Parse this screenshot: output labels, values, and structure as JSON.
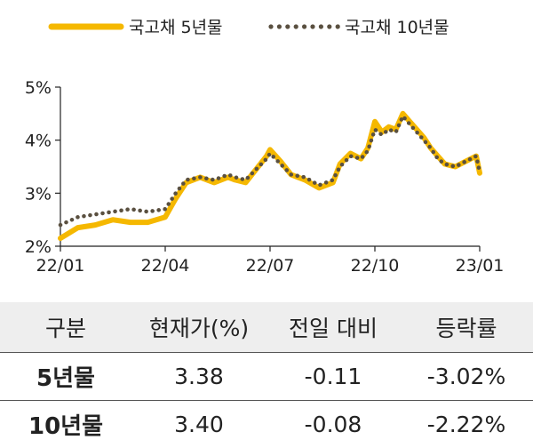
{
  "chart_data": {
    "type": "line",
    "title": "",
    "xlabel": "",
    "ylabel": "",
    "ylim": [
      2,
      5
    ],
    "yticks": [
      "2%",
      "3%",
      "4%",
      "5%"
    ],
    "xticks": [
      "22/01",
      "22/04",
      "22/07",
      "22/10",
      "23/01"
    ],
    "grid": false,
    "legend": "top",
    "x_months": [
      0,
      0.5,
      1,
      1.5,
      2,
      2.5,
      3,
      3.3,
      3.6,
      4,
      4.4,
      4.8,
      5,
      5.3,
      5.6,
      5.9,
      6,
      6.3,
      6.6,
      7,
      7.4,
      7.8,
      8,
      8.3,
      8.6,
      8.8,
      9,
      9.2,
      9.4,
      9.6,
      9.8,
      10,
      10.2,
      10.4,
      10.6,
      10.8,
      11,
      11.3,
      11.6,
      11.9,
      12
    ],
    "series": [
      {
        "name": "국고채 5년물",
        "color": "#F5B800",
        "style": "solid",
        "values": [
          2.15,
          2.35,
          2.4,
          2.5,
          2.45,
          2.45,
          2.55,
          2.9,
          3.2,
          3.3,
          3.2,
          3.3,
          3.25,
          3.2,
          3.45,
          3.7,
          3.82,
          3.6,
          3.35,
          3.25,
          3.1,
          3.2,
          3.55,
          3.75,
          3.65,
          3.85,
          4.35,
          4.15,
          4.25,
          4.2,
          4.5,
          4.35,
          4.2,
          4.05,
          3.85,
          3.7,
          3.55,
          3.5,
          3.6,
          3.7,
          3.38
        ]
      },
      {
        "name": "국고채 10년물",
        "color": "#5A5040",
        "style": "dotted",
        "values": [
          2.4,
          2.55,
          2.6,
          2.65,
          2.7,
          2.65,
          2.7,
          3.0,
          3.25,
          3.3,
          3.25,
          3.35,
          3.3,
          3.25,
          3.45,
          3.65,
          3.75,
          3.55,
          3.35,
          3.3,
          3.15,
          3.25,
          3.5,
          3.7,
          3.65,
          3.8,
          4.2,
          4.1,
          4.2,
          4.15,
          4.45,
          4.3,
          4.15,
          4.0,
          3.85,
          3.65,
          3.55,
          3.5,
          3.6,
          3.7,
          3.4
        ]
      }
    ]
  },
  "table": {
    "headers": [
      "구분",
      "현재가(%)",
      "전일 대비",
      "등락률"
    ],
    "rows": [
      [
        "5년물",
        "3.38",
        "-0.11",
        "-3.02%"
      ],
      [
        "10년물",
        "3.40",
        "-0.08",
        "-2.22%"
      ]
    ]
  }
}
